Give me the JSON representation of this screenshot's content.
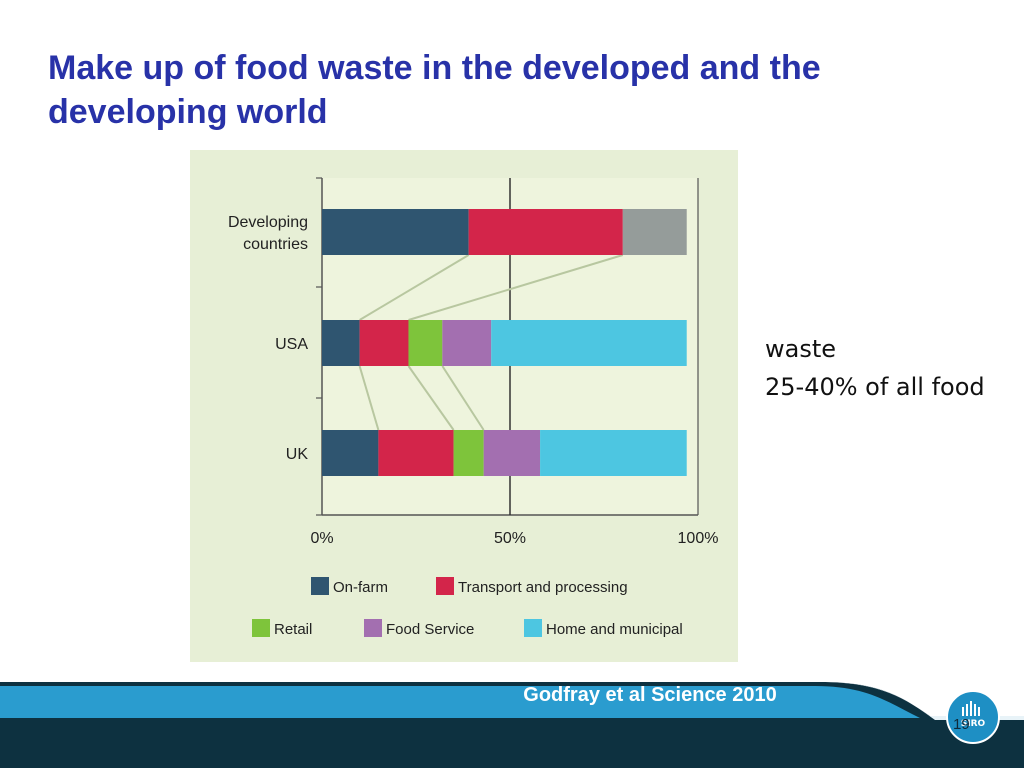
{
  "slide": {
    "title": "Make up of food waste in the developed and the developing world",
    "side_note_lines": [
      "waste",
      "25-40% of all food"
    ],
    "citation": "Godfray et al Science 2010",
    "page_number": "19",
    "logo_text": "SIRO",
    "colors": {
      "title": "#2832a8",
      "figure_background": "#e7efd6",
      "plot_background": "#eef4dd",
      "footer_dark": "#0d3140",
      "footer_band": "#2a9ccf"
    },
    "icons": {
      "logo": "csiro-logo-icon"
    }
  },
  "chart_data": {
    "type": "bar",
    "orientation": "horizontal",
    "stacked": true,
    "categories": [
      "Developing countries",
      "USA",
      "UK"
    ],
    "category_labels": [
      [
        "Developing",
        "countries"
      ],
      [
        "USA"
      ],
      [
        "UK"
      ]
    ],
    "series": [
      {
        "name": "On-farm",
        "color": "#2f5570",
        "values": [
          39,
          10,
          15
        ]
      },
      {
        "name": "Transport and processing",
        "color": "#d3254a",
        "values": [
          41,
          13,
          20
        ]
      },
      {
        "name": "Retail",
        "color": "#7ec43b",
        "values": [
          0,
          9,
          8
        ]
      },
      {
        "name": "Food Service",
        "color": "#a36fb0",
        "values": [
          0,
          13,
          15
        ]
      },
      {
        "name": "Home and municipal",
        "color": "#4dc6e1",
        "values": [
          0,
          52,
          39
        ]
      },
      {
        "color": "#959c9a",
        "values": [
          17,
          0,
          0
        ]
      }
    ],
    "xlim": [
      0,
      100
    ],
    "x_ticks": [
      "0%",
      "50%",
      "100%"
    ],
    "reference_line": 50,
    "legend_position": "bottom",
    "legend_rows": [
      [
        0,
        1
      ],
      [
        2,
        3,
        4
      ]
    ]
  }
}
